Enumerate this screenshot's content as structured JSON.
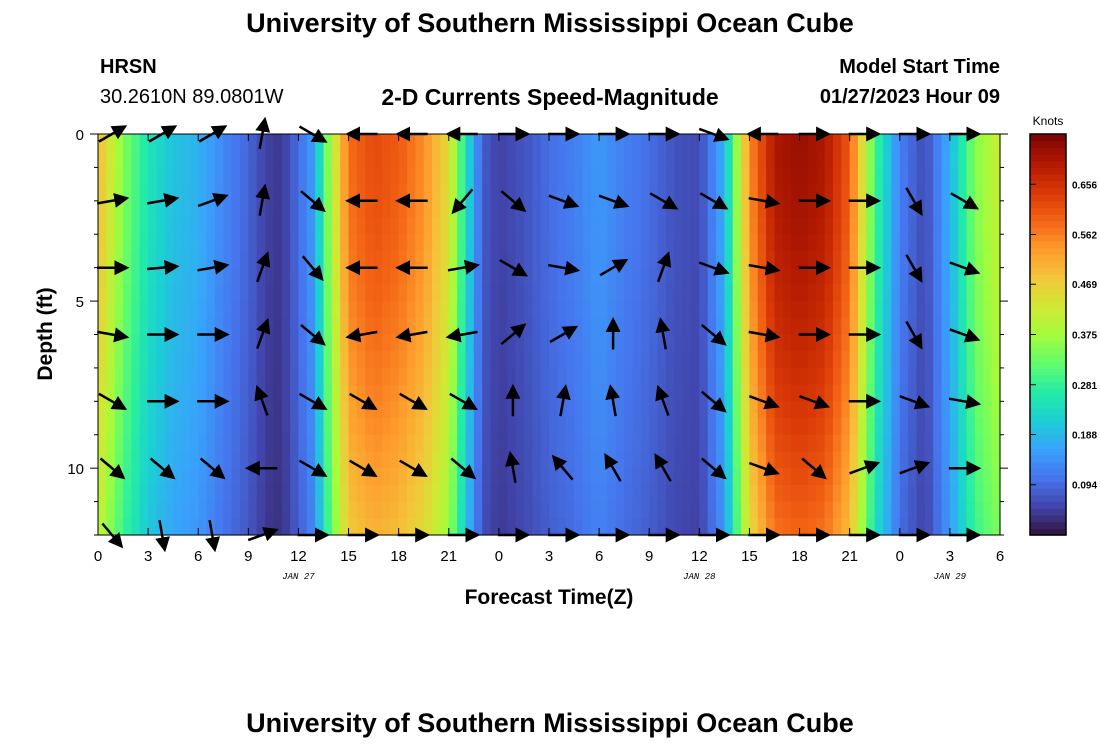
{
  "header": {
    "title": "University of Southern Mississippi Ocean Cube",
    "station": "HRSN",
    "coordinates": "30.2610N  89.0801W",
    "plot_title": "2-D Currents Speed-Magnitude",
    "model_start_label": "Model Start Time",
    "model_start_value": "01/27/2023 Hour 09"
  },
  "footer": {
    "title": "University of Southern Mississippi Ocean Cube"
  },
  "colors": {
    "scale": [
      "#30123b",
      "#4145ab",
      "#4675ed",
      "#39a2fc",
      "#1bcfd4",
      "#24eca6",
      "#61fc6c",
      "#a4fc3b",
      "#d1e834",
      "#f3c63a",
      "#fe9b2d",
      "#f36315",
      "#d93806",
      "#b11901",
      "#7a0402"
    ],
    "arrow": "#000000"
  },
  "chart_data": {
    "type": "heatmap",
    "title": "2-D Currents Speed-Magnitude",
    "xlabel": "Forecast Time(Z)",
    "ylabel": "Depth (ft)",
    "x_hours_range": [
      0,
      54
    ],
    "y_range": [
      0,
      12
    ],
    "y_inverted": true,
    "x_tick_labels": [
      "0",
      "3",
      "6",
      "9",
      "12",
      "15",
      "18",
      "21",
      "0",
      "3",
      "6",
      "9",
      "12",
      "15",
      "18",
      "21",
      "0",
      "3",
      "6"
    ],
    "y_tick_labels": [
      "0",
      "5",
      "10"
    ],
    "y_tick_values": [
      0,
      5,
      10
    ],
    "date_labels": [
      {
        "hour": 12,
        "text": "JAN 27"
      },
      {
        "hour": 36,
        "text": "JAN 28"
      },
      {
        "hour": 51,
        "text": "JAN 29"
      }
    ],
    "colorbar": {
      "label": "Knots",
      "min": 0.0,
      "max": 0.75,
      "tick_values": [
        0.094,
        0.188,
        0.281,
        0.375,
        0.469,
        0.562,
        0.656
      ],
      "tick_labels": [
        "0.094",
        "0.188",
        "0.281",
        "0.375",
        "0.469",
        "0.562",
        "0.656"
      ]
    },
    "speed_profile": {
      "description_hours": [
        0,
        1.5,
        3,
        4.5,
        6,
        7.5,
        9,
        10,
        11,
        12,
        13,
        13.5,
        15,
        16.5,
        18,
        19.5,
        21,
        22,
        23,
        24,
        25.5,
        27,
        28.5,
        30,
        31.5,
        33,
        34.5,
        36,
        37.5,
        39,
        40.5,
        42,
        43.5,
        45,
        46.5,
        48,
        49.5,
        51,
        52.5,
        54
      ],
      "speed_knots": [
        0.5,
        0.35,
        0.25,
        0.2,
        0.18,
        0.13,
        0.09,
        0.05,
        0.04,
        0.1,
        0.16,
        0.3,
        0.58,
        0.62,
        0.6,
        0.55,
        0.45,
        0.25,
        0.08,
        0.05,
        0.07,
        0.1,
        0.12,
        0.15,
        0.12,
        0.1,
        0.07,
        0.06,
        0.18,
        0.55,
        0.7,
        0.72,
        0.7,
        0.6,
        0.3,
        0.12,
        0.06,
        0.18,
        0.35,
        0.42
      ]
    },
    "vectors": {
      "hours": [
        0,
        3,
        6,
        9,
        12,
        15,
        18,
        21,
        24,
        27,
        30,
        33,
        36,
        39,
        42,
        45,
        48,
        51
      ],
      "depths": [
        0,
        2,
        4,
        6,
        8,
        10,
        12
      ],
      "angles_deg": [
        [
          30,
          30,
          30,
          80,
          -30,
          180,
          180,
          180,
          0,
          0,
          0,
          0,
          -20,
          180,
          0,
          0,
          0,
          0
        ],
        [
          10,
          10,
          20,
          80,
          -40,
          180,
          180,
          -130,
          -40,
          -20,
          -20,
          -30,
          -30,
          -10,
          0,
          0,
          -60,
          -30
        ],
        [
          0,
          5,
          10,
          70,
          -50,
          180,
          180,
          10,
          -30,
          -10,
          30,
          70,
          -20,
          -10,
          0,
          0,
          -60,
          -20
        ],
        [
          -10,
          0,
          0,
          70,
          -40,
          190,
          190,
          190,
          40,
          30,
          90,
          100,
          -40,
          -10,
          0,
          0,
          -60,
          -20
        ],
        [
          -30,
          0,
          0,
          110,
          -30,
          -30,
          -30,
          -30,
          90,
          80,
          100,
          110,
          -40,
          -20,
          -20,
          0,
          -20,
          -10
        ],
        [
          -40,
          -40,
          -40,
          180,
          -30,
          -30,
          -30,
          -40,
          100,
          130,
          120,
          120,
          -40,
          -20,
          -40,
          20,
          20,
          0
        ],
        [
          -50,
          -80,
          -80,
          20,
          0,
          0,
          0,
          0,
          0,
          0,
          0,
          0,
          0,
          0,
          0,
          0,
          0,
          0
        ]
      ]
    }
  }
}
